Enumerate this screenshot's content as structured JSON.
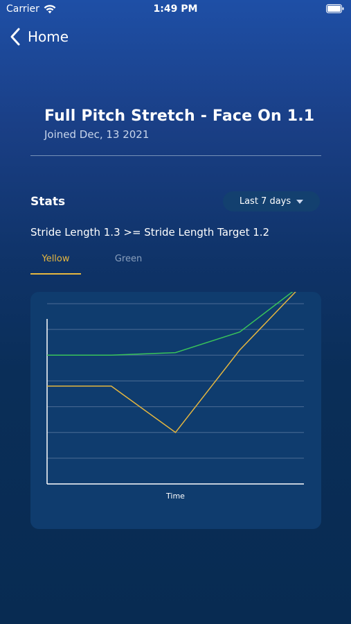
{
  "status_bar": {
    "carrier": "Carrier",
    "time": "1:49 PM"
  },
  "nav": {
    "back_label": "Home"
  },
  "header": {
    "title": "Full Pitch Stretch - Face On 1.1",
    "joined": "Joined Dec, 13 2021"
  },
  "stats": {
    "heading": "Stats",
    "range_label": "Last 7 days",
    "rule": "Stride Length 1.3 >= Stride Length Target 1.2",
    "tabs": [
      {
        "label": "Yellow",
        "active": true
      },
      {
        "label": "Green",
        "active": false
      }
    ]
  },
  "colors": {
    "accent_yellow": "#e6b73f",
    "series_green": "#39c35a",
    "tab_inactive": "#8aa0bd"
  },
  "icons": {
    "back": "chevron-left-icon",
    "wifi": "wifi-icon",
    "battery": "battery-icon",
    "dropdown": "caret-down-icon"
  },
  "chart_data": {
    "type": "line",
    "xlabel": "Time",
    "ylabel": "",
    "x": [
      0,
      1,
      2,
      3,
      4
    ],
    "ylim": [
      0,
      7
    ],
    "grid": true,
    "series": [
      {
        "color": "#39c35a",
        "values": [
          5,
          5,
          5.1,
          5.9,
          7.8
        ]
      },
      {
        "color": "#e6b73f",
        "values": [
          3.8,
          3.8,
          2,
          5.2,
          7.8
        ]
      }
    ]
  }
}
